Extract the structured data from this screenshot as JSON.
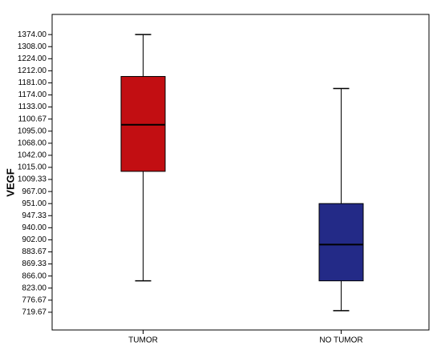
{
  "chart_data": {
    "type": "boxplot",
    "y_label": "VEGF",
    "categories": [
      "TUMOR",
      "NO TUMOR"
    ],
    "colors": [
      "#c20e12",
      "#232a87"
    ],
    "boxes": [
      {
        "whisker_low": 3.6,
        "q1": 12.67,
        "median": 16.53,
        "q3": 20.53,
        "whisker_high": 24
      },
      {
        "whisker_low": 1.13,
        "q1": 3.6,
        "median": 6.6,
        "q3": 10,
        "whisker_high": 19.53
      }
    ],
    "ylim": [
      -0.47,
      25.67
    ],
    "yticks": [
      {
        "value": 1,
        "label": "719.67"
      },
      {
        "value": 2,
        "label": "776.67"
      },
      {
        "value": 3,
        "label": "823.00"
      },
      {
        "value": 4,
        "label": "866.00"
      },
      {
        "value": 5,
        "label": "869.33"
      },
      {
        "value": 6,
        "label": "883.67"
      },
      {
        "value": 7,
        "label": "902.00"
      },
      {
        "value": 8,
        "label": "940.00"
      },
      {
        "value": 9,
        "label": "947.33"
      },
      {
        "value": 10,
        "label": "951.00"
      },
      {
        "value": 11,
        "label": "967.00"
      },
      {
        "value": 12,
        "label": "1009.33"
      },
      {
        "value": 13,
        "label": "1015.00"
      },
      {
        "value": 14,
        "label": "1042.00"
      },
      {
        "value": 15,
        "label": "1068.00"
      },
      {
        "value": 16,
        "label": "1095.00"
      },
      {
        "value": 17,
        "label": "1100.67"
      },
      {
        "value": 18,
        "label": "1133.00"
      },
      {
        "value": 19,
        "label": "1174.00"
      },
      {
        "value": 20,
        "label": "1181.00"
      },
      {
        "value": 21,
        "label": "1212.00"
      },
      {
        "value": 22,
        "label": "1224.00"
      },
      {
        "value": 23,
        "label": "1308.00"
      },
      {
        "value": 24,
        "label": "1374.00"
      }
    ]
  }
}
